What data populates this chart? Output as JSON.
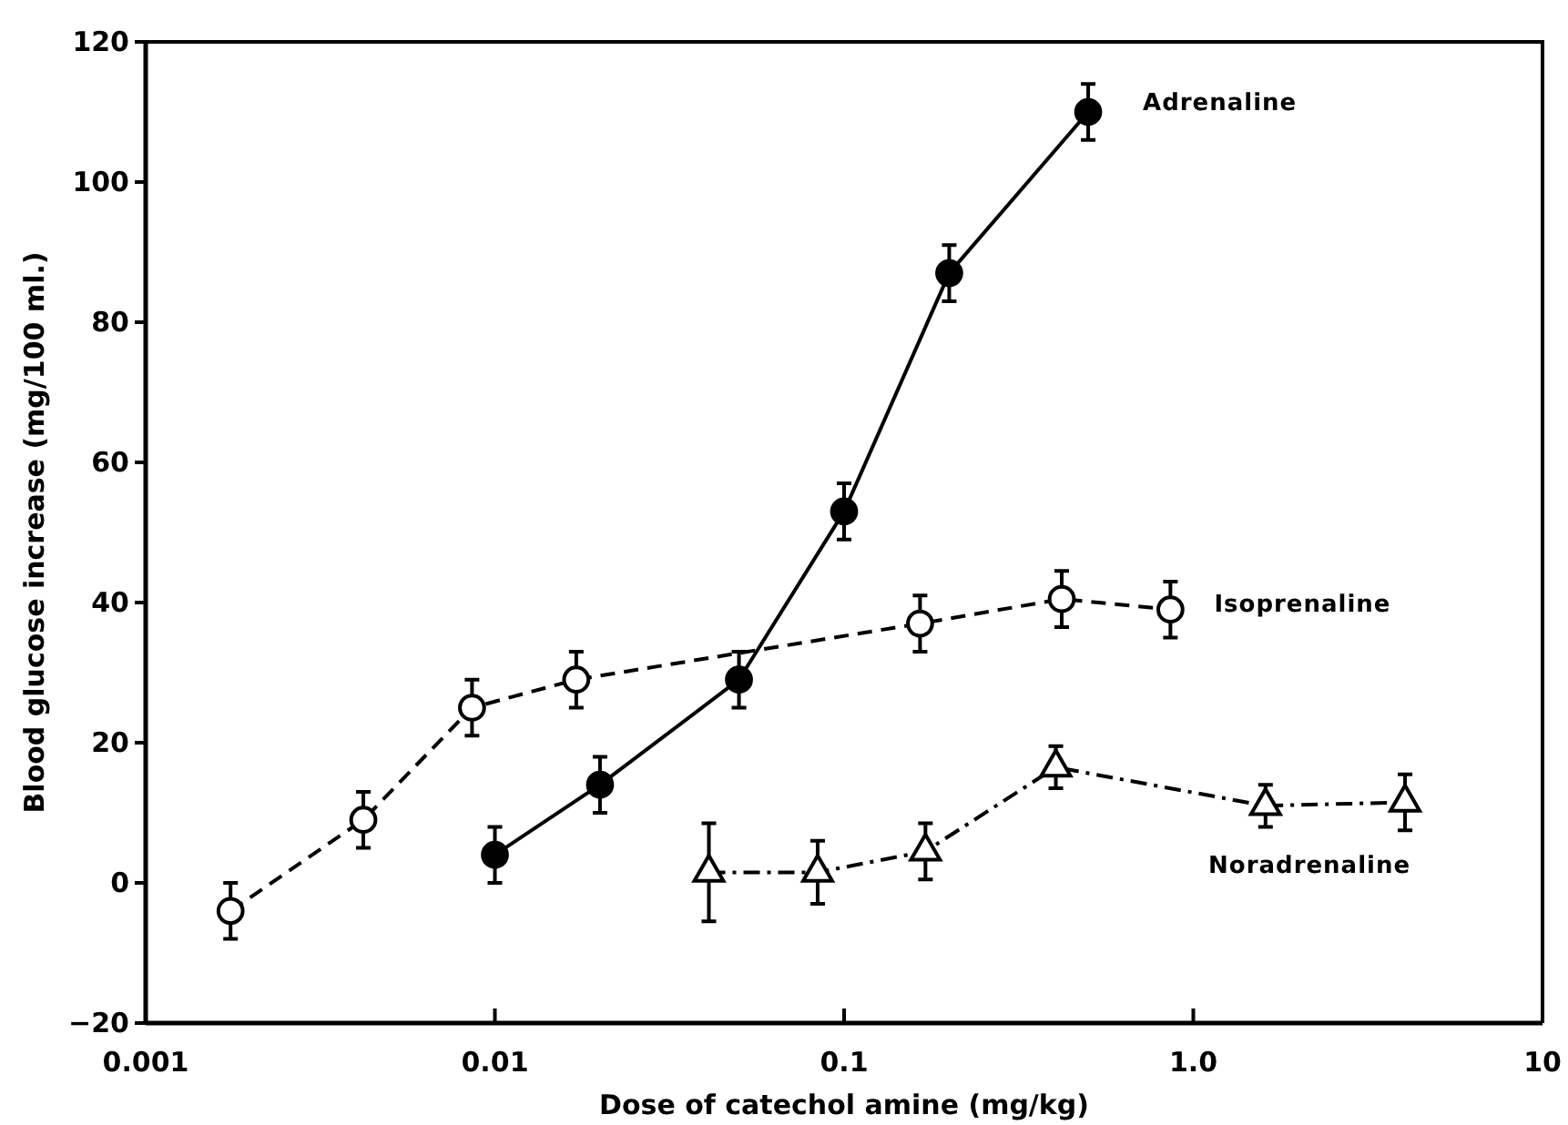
{
  "chart_data": {
    "type": "line",
    "xlabel": "Dose of catechol amine (mg/kg)",
    "ylabel": "Blood glucose increase (mg/100 ml.)",
    "log": "x",
    "xlim": [
      0.001,
      10
    ],
    "xticks": [
      0.001,
      0.01,
      0.1,
      {
        "value": 1,
        "label": "1.0"
      },
      10
    ],
    "ylim": [
      -20,
      120
    ],
    "yticks": [
      -20,
      0,
      20,
      40,
      60,
      80,
      100,
      120
    ],
    "grid": false,
    "legend": false,
    "series": [
      {
        "name": "Adrenaline",
        "color": "#000000",
        "marker": "circle",
        "line_style": "solid",
        "x": [
          0.01,
          0.02,
          0.05,
          0.1,
          0.2,
          0.5
        ],
        "values": [
          4,
          14,
          29,
          53,
          87,
          110
        ],
        "errors": [
          4,
          4,
          4,
          4,
          4,
          4
        ]
      },
      {
        "name": "Isoprenaline",
        "color": "#000000",
        "marker": "circle-open",
        "line_style": "dashed",
        "x": [
          0.00175,
          0.0042,
          0.0086,
          0.0171,
          0.165,
          0.42,
          0.86
        ],
        "values": [
          -4,
          9,
          25,
          29,
          37,
          40.5,
          39
        ],
        "errors": [
          4,
          4,
          4,
          4,
          4,
          4,
          4
        ]
      },
      {
        "name": "Noradrenaline",
        "color": "#000000",
        "marker": "triangle-open",
        "line_style": "dashdot",
        "x": [
          0.041,
          0.084,
          0.171,
          0.404,
          1.61,
          4.04
        ],
        "values": [
          1.5,
          1.5,
          4.5,
          16.5,
          11,
          11.5
        ],
        "errors": [
          7,
          4.5,
          4,
          3,
          3,
          4
        ]
      }
    ]
  }
}
